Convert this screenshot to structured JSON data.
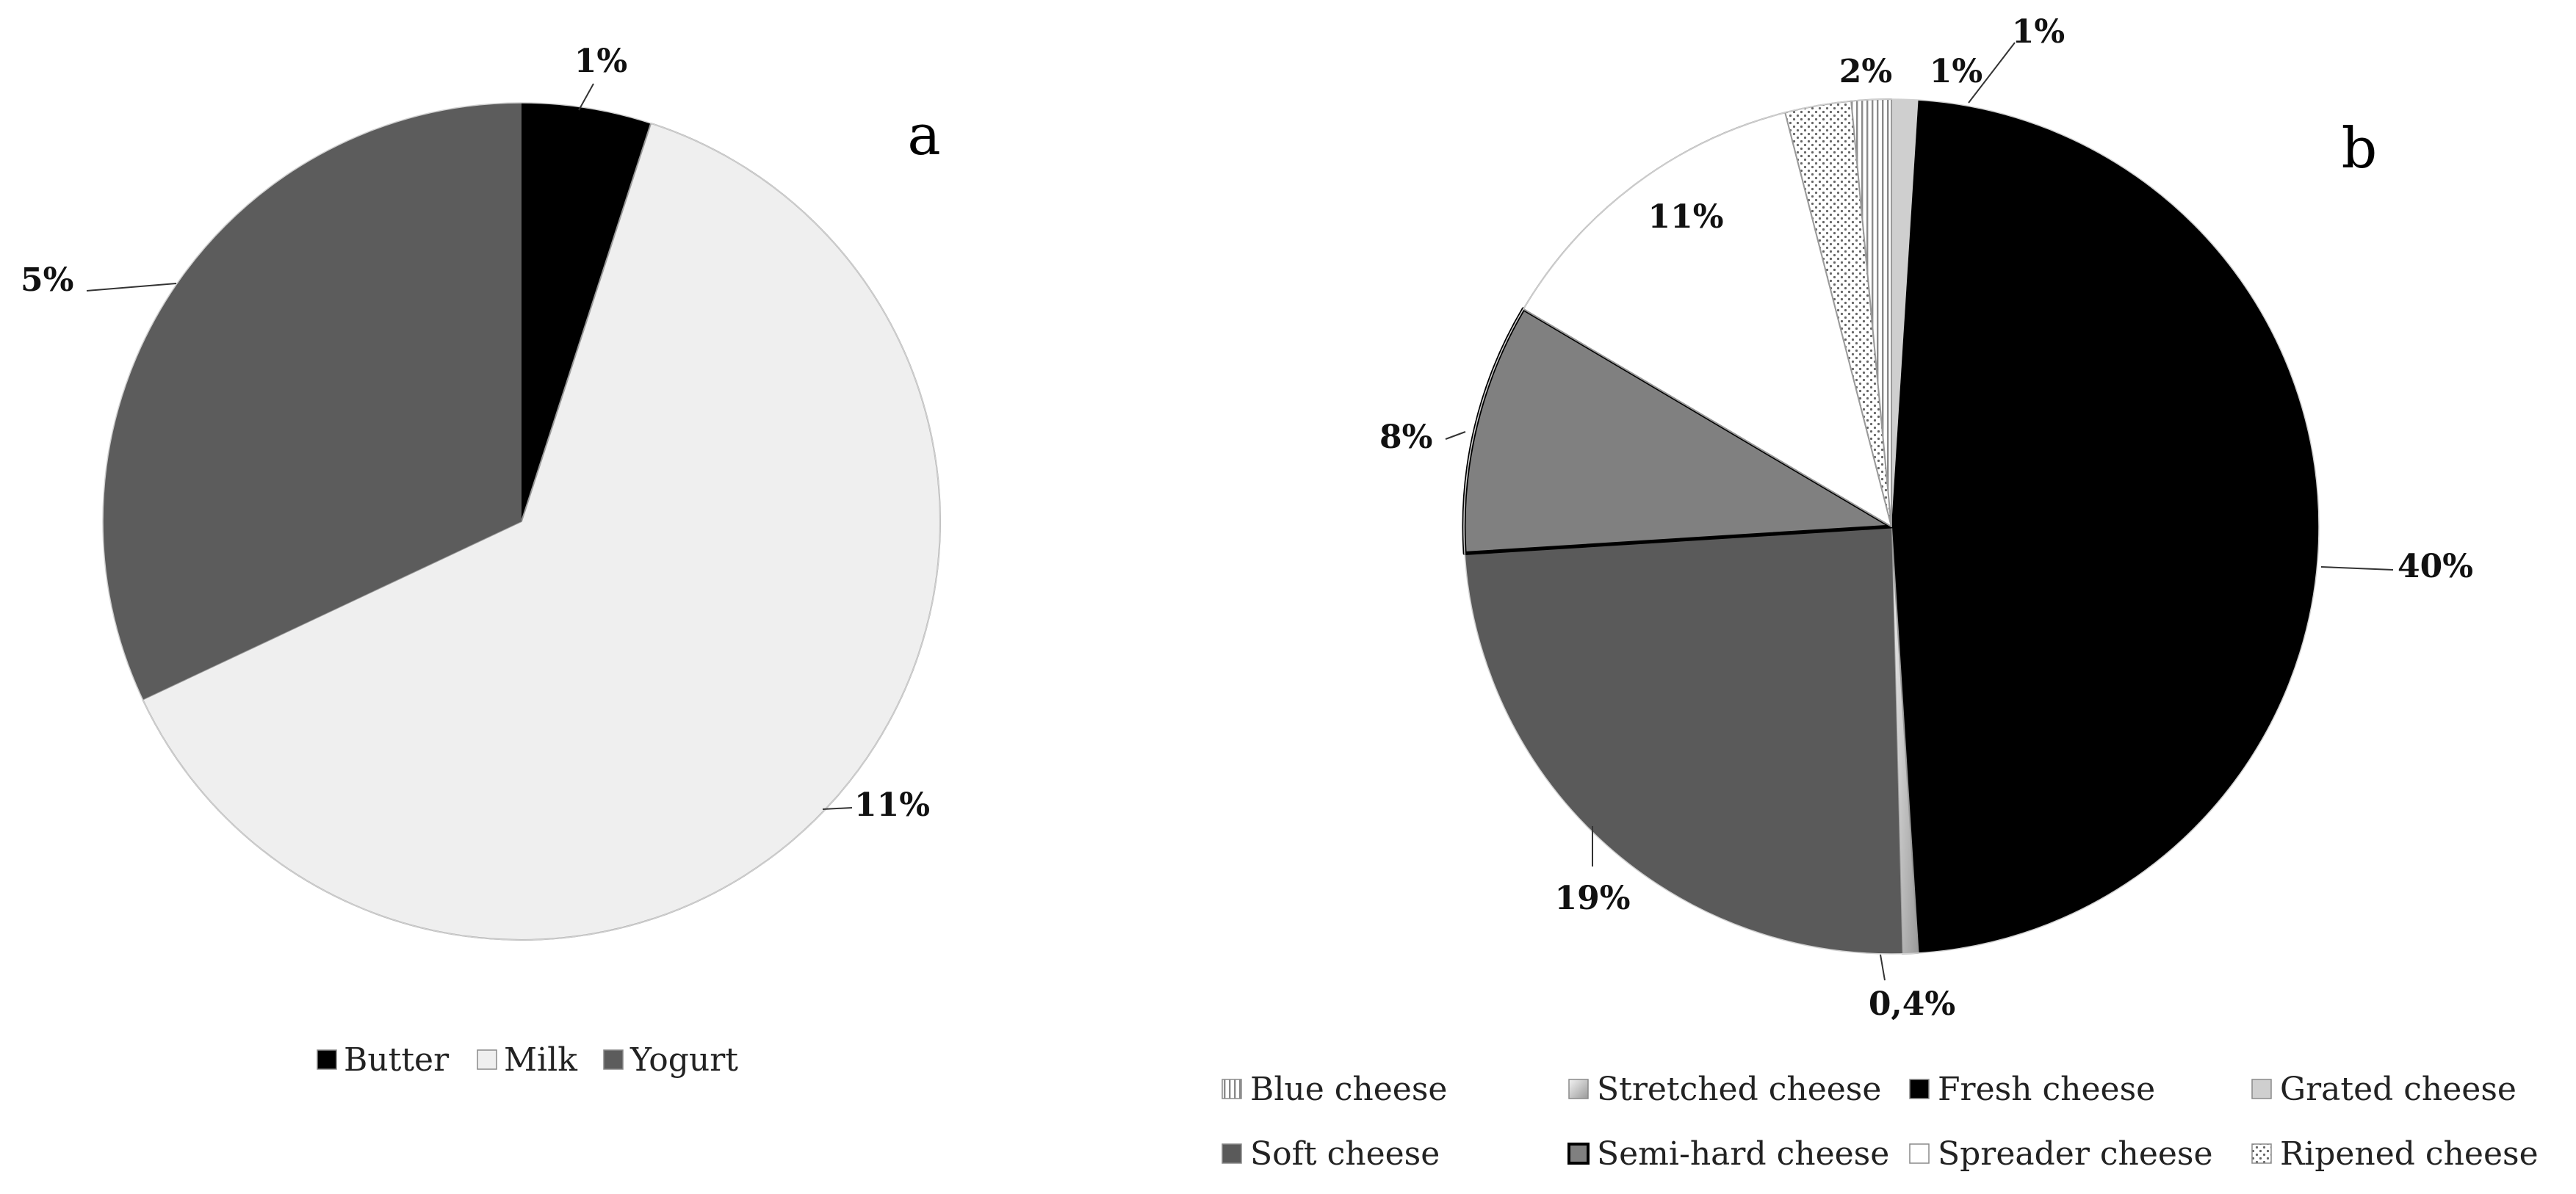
{
  "chart_data": [
    {
      "type": "pie",
      "panel_label": "a",
      "slices": [
        {
          "name": "Butter",
          "value": 5,
          "color": "#000000",
          "pattern": "solid",
          "label": "1%"
        },
        {
          "name": "Milk",
          "value": 63,
          "color": "#efefef",
          "pattern": "solid",
          "label": "11%"
        },
        {
          "name": "Yogurt",
          "value": 32,
          "color": "#5c5c5c",
          "pattern": "solid",
          "label": "5%"
        }
      ],
      "legend": [
        "Butter",
        "Milk",
        "Yogurt"
      ],
      "legend_position": "bottom"
    },
    {
      "type": "pie",
      "panel_label": "b",
      "slices": [
        {
          "name": "Grated cheese",
          "value": 1,
          "color": "#cfcfcf",
          "pattern": "solid",
          "label": "1%"
        },
        {
          "name": "Fresh cheese",
          "value": 48,
          "color": "#000000",
          "pattern": "solid",
          "label": "40%"
        },
        {
          "name": "Stretched cheese",
          "value": 0.6,
          "color": "#d9d9d9",
          "pattern": "gradient",
          "label": "0,4%"
        },
        {
          "name": "Soft cheese",
          "value": 24.4,
          "color": "#5a5a5a",
          "pattern": "solid",
          "label": "19%"
        },
        {
          "name": "Semi-hard cheese",
          "value": 9.5,
          "color": "#808080",
          "pattern": "outlined",
          "label": "8%"
        },
        {
          "name": "Spreader  cheese",
          "value": 12.5,
          "color": "#ffffff",
          "pattern": "solid",
          "label": "11%"
        },
        {
          "name": "Ripened cheese",
          "value": 2.5,
          "color": "#ffffff",
          "pattern": "dots",
          "label": "2%"
        },
        {
          "name": "Blue cheese",
          "value": 1.5,
          "color": "#ffffff",
          "pattern": "vlines",
          "label": "1%"
        }
      ],
      "legend": [
        "Blue cheese",
        "Stretched cheese",
        "Fresh cheese",
        "Grated cheese",
        "Soft cheese",
        "Semi-hard cheese",
        "Spreader  cheese",
        "Ripened cheese"
      ],
      "legend_position": "bottom"
    }
  ]
}
